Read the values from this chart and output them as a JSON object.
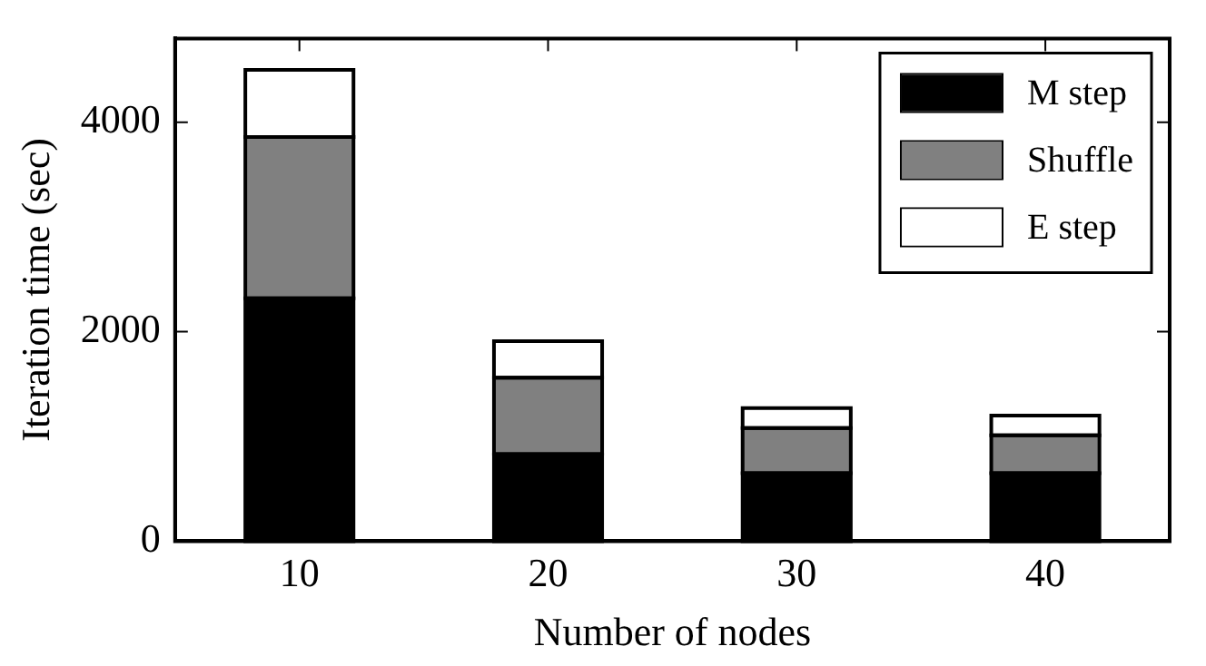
{
  "chart_data": {
    "type": "bar",
    "stacked": true,
    "xlabel": "Number of nodes",
    "ylabel": "Iteration time (sec)",
    "categories": [
      "10",
      "20",
      "30",
      "40"
    ],
    "series": [
      {
        "name": "M step",
        "color": "#000000",
        "values": [
          2320,
          830,
          650,
          650
        ]
      },
      {
        "name": "Shuffle",
        "color": "#808080",
        "values": [
          1540,
          730,
          430,
          360
        ]
      },
      {
        "name": "E step",
        "color": "#ffffff",
        "values": [
          640,
          350,
          190,
          190
        ]
      }
    ],
    "ylim": [
      0,
      4800
    ],
    "yticks": [
      0,
      2000,
      4000
    ],
    "grid": false,
    "legend": "top right"
  }
}
